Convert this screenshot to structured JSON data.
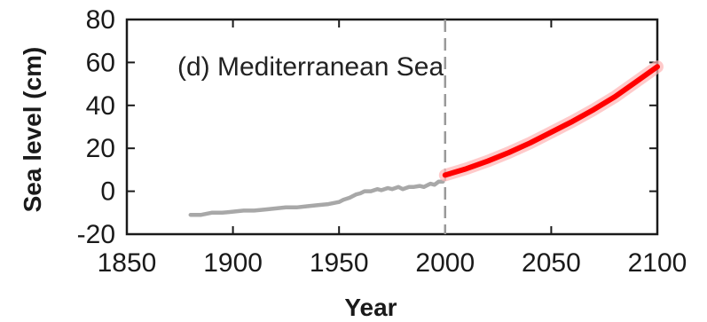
{
  "chart_data": {
    "type": "line",
    "title": "",
    "panel_label": "(d) Mediterranean Sea",
    "xlabel": "Year",
    "ylabel": "Sea level (cm)",
    "xlim": [
      1850,
      2100
    ],
    "ylim": [
      -20,
      80
    ],
    "x_ticks": [
      1850,
      1900,
      1950,
      2000,
      2050,
      2100
    ],
    "y_ticks": [
      -20,
      0,
      20,
      40,
      60,
      80
    ],
    "grid": false,
    "legend": "none",
    "vertical_line": {
      "x": 2000,
      "style": "dashed",
      "color": "#999999"
    },
    "series": [
      {
        "color": "#a8a8a8",
        "x": [
          1880,
          1885,
          1890,
          1895,
          1900,
          1905,
          1910,
          1915,
          1920,
          1925,
          1930,
          1935,
          1940,
          1945,
          1950,
          1952,
          1955,
          1958,
          1960,
          1962,
          1965,
          1968,
          1970,
          1973,
          1975,
          1978,
          1980,
          1983,
          1985,
          1988,
          1990,
          1993,
          1995,
          1997,
          1999
        ],
        "y": [
          -11,
          -11,
          -10,
          -10,
          -9.5,
          -9,
          -9,
          -8.5,
          -8,
          -7.5,
          -7.5,
          -7,
          -6.5,
          -6,
          -5,
          -4,
          -3,
          -1.5,
          -1,
          0,
          0,
          1,
          0.5,
          1.5,
          1,
          2,
          1,
          2,
          2,
          2.5,
          2,
          3.5,
          3,
          4.5,
          4.5
        ]
      },
      {
        "color": "#ff0000",
        "x": [
          2000,
          2010,
          2020,
          2030,
          2040,
          2050,
          2060,
          2070,
          2080,
          2090,
          2100
        ],
        "y": [
          7.5,
          10.5,
          14,
          18,
          22.5,
          27.5,
          32.5,
          38,
          44,
          51,
          58
        ]
      }
    ]
  }
}
